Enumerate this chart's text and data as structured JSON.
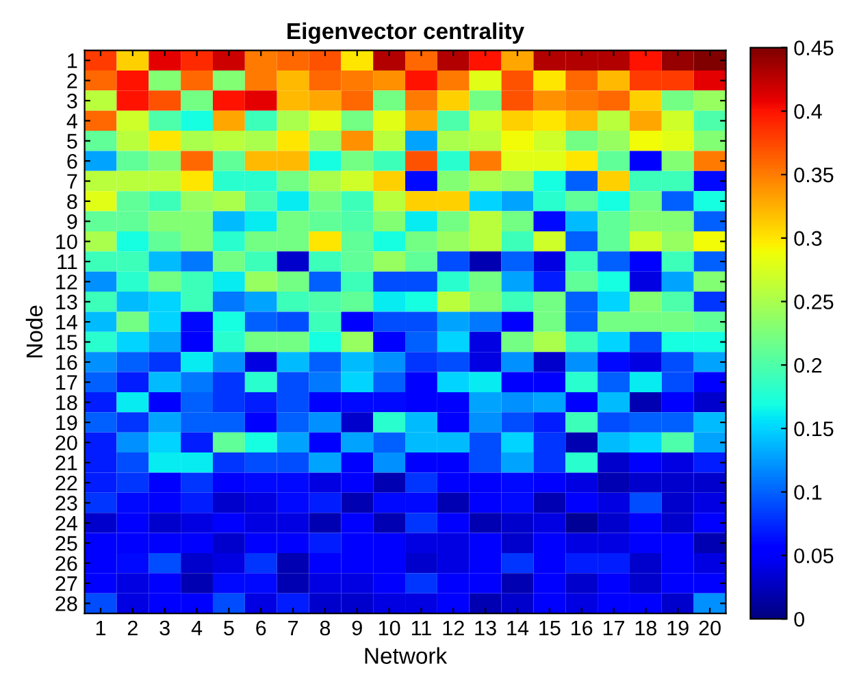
{
  "chart_data": {
    "type": "heatmap",
    "title": "Eigenvector centrality",
    "xlabel": "Network",
    "ylabel": "Node",
    "categories": [
      "1",
      "2",
      "3",
      "4",
      "5",
      "6",
      "7",
      "8",
      "9",
      "10",
      "11",
      "12",
      "13",
      "14",
      "15",
      "16",
      "17",
      "18",
      "19",
      "20"
    ],
    "y_categories": [
      "1",
      "2",
      "3",
      "4",
      "5",
      "6",
      "7",
      "8",
      "9",
      "10",
      "11",
      "12",
      "13",
      "14",
      "15",
      "16",
      "17",
      "18",
      "19",
      "20",
      "21",
      "22",
      "23",
      "24",
      "25",
      "26",
      "27",
      "28"
    ],
    "clim": [
      0,
      0.45
    ],
    "cticks": [
      0,
      0.05,
      0.1,
      0.15,
      0.2,
      0.25,
      0.3,
      0.35,
      0.4,
      0.45
    ],
    "cells": [
      [
        0.38,
        0.31,
        0.41,
        0.39,
        0.42,
        0.35,
        0.36,
        0.37,
        0.3,
        0.43,
        0.36,
        0.43,
        0.4,
        0.33,
        0.43,
        0.43,
        0.43,
        0.4,
        0.44,
        0.45
      ],
      [
        0.36,
        0.4,
        0.23,
        0.36,
        0.23,
        0.35,
        0.32,
        0.36,
        0.35,
        0.34,
        0.4,
        0.35,
        0.28,
        0.37,
        0.3,
        0.36,
        0.32,
        0.38,
        0.38,
        0.41
      ],
      [
        0.26,
        0.4,
        0.37,
        0.22,
        0.4,
        0.41,
        0.32,
        0.33,
        0.36,
        0.22,
        0.35,
        0.31,
        0.22,
        0.37,
        0.34,
        0.35,
        0.36,
        0.31,
        0.22,
        0.24
      ],
      [
        0.36,
        0.27,
        0.2,
        0.17,
        0.33,
        0.19,
        0.25,
        0.28,
        0.22,
        0.28,
        0.33,
        0.2,
        0.27,
        0.31,
        0.3,
        0.32,
        0.26,
        0.33,
        0.27,
        0.2
      ],
      [
        0.21,
        0.26,
        0.3,
        0.25,
        0.26,
        0.25,
        0.3,
        0.24,
        0.34,
        0.26,
        0.13,
        0.25,
        0.26,
        0.29,
        0.27,
        0.22,
        0.24,
        0.29,
        0.28,
        0.23
      ],
      [
        0.13,
        0.21,
        0.23,
        0.36,
        0.21,
        0.32,
        0.32,
        0.17,
        0.22,
        0.19,
        0.37,
        0.18,
        0.35,
        0.28,
        0.28,
        0.3,
        0.21,
        0.05,
        0.23,
        0.35
      ],
      [
        0.26,
        0.26,
        0.26,
        0.3,
        0.18,
        0.18,
        0.22,
        0.25,
        0.27,
        0.31,
        0.06,
        0.23,
        0.25,
        0.24,
        0.17,
        0.1,
        0.31,
        0.19,
        0.19,
        0.06
      ],
      [
        0.28,
        0.21,
        0.19,
        0.24,
        0.25,
        0.2,
        0.16,
        0.22,
        0.19,
        0.26,
        0.31,
        0.31,
        0.15,
        0.13,
        0.18,
        0.21,
        0.17,
        0.22,
        0.1,
        0.17
      ],
      [
        0.21,
        0.21,
        0.23,
        0.23,
        0.14,
        0.16,
        0.22,
        0.21,
        0.2,
        0.23,
        0.16,
        0.22,
        0.26,
        0.22,
        0.06,
        0.14,
        0.21,
        0.23,
        0.23,
        0.1
      ],
      [
        0.25,
        0.17,
        0.21,
        0.23,
        0.18,
        0.22,
        0.22,
        0.3,
        0.21,
        0.17,
        0.22,
        0.24,
        0.26,
        0.19,
        0.27,
        0.1,
        0.21,
        0.27,
        0.24,
        0.29
      ],
      [
        0.19,
        0.19,
        0.14,
        0.11,
        0.22,
        0.19,
        0.03,
        0.19,
        0.21,
        0.24,
        0.21,
        0.09,
        0.02,
        0.1,
        0.04,
        0.19,
        0.1,
        0.05,
        0.19,
        0.1
      ],
      [
        0.12,
        0.18,
        0.22,
        0.19,
        0.16,
        0.24,
        0.22,
        0.1,
        0.19,
        0.09,
        0.09,
        0.18,
        0.22,
        0.13,
        0.07,
        0.21,
        0.17,
        0.04,
        0.13,
        0.23
      ],
      [
        0.19,
        0.14,
        0.15,
        0.19,
        0.11,
        0.13,
        0.19,
        0.2,
        0.21,
        0.16,
        0.17,
        0.26,
        0.23,
        0.19,
        0.22,
        0.1,
        0.15,
        0.23,
        0.2,
        0.08
      ],
      [
        0.14,
        0.22,
        0.15,
        0.06,
        0.17,
        0.1,
        0.09,
        0.19,
        0.05,
        0.09,
        0.09,
        0.13,
        0.11,
        0.05,
        0.22,
        0.1,
        0.22,
        0.22,
        0.22,
        0.21
      ],
      [
        0.18,
        0.15,
        0.13,
        0.05,
        0.18,
        0.22,
        0.22,
        0.17,
        0.24,
        0.05,
        0.1,
        0.15,
        0.04,
        0.22,
        0.25,
        0.19,
        0.15,
        0.09,
        0.17,
        0.17
      ],
      [
        0.12,
        0.1,
        0.08,
        0.16,
        0.12,
        0.04,
        0.14,
        0.1,
        0.14,
        0.12,
        0.08,
        0.09,
        0.04,
        0.12,
        0.03,
        0.12,
        0.06,
        0.04,
        0.09,
        0.13
      ],
      [
        0.1,
        0.07,
        0.14,
        0.11,
        0.08,
        0.18,
        0.09,
        0.11,
        0.15,
        0.1,
        0.05,
        0.15,
        0.16,
        0.05,
        0.05,
        0.18,
        0.1,
        0.16,
        0.09,
        0.05
      ],
      [
        0.07,
        0.16,
        0.05,
        0.1,
        0.08,
        0.07,
        0.09,
        0.05,
        0.06,
        0.06,
        0.05,
        0.05,
        0.13,
        0.12,
        0.13,
        0.05,
        0.14,
        0.02,
        0.05,
        0.03
      ],
      [
        0.1,
        0.08,
        0.13,
        0.1,
        0.1,
        0.05,
        0.1,
        0.12,
        0.03,
        0.18,
        0.14,
        0.05,
        0.12,
        0.09,
        0.07,
        0.19,
        0.09,
        0.1,
        0.1,
        0.14
      ],
      [
        0.07,
        0.12,
        0.15,
        0.07,
        0.21,
        0.17,
        0.13,
        0.05,
        0.13,
        0.1,
        0.14,
        0.14,
        0.09,
        0.15,
        0.08,
        0.02,
        0.14,
        0.15,
        0.2,
        0.13
      ],
      [
        0.07,
        0.09,
        0.16,
        0.16,
        0.08,
        0.09,
        0.09,
        0.13,
        0.05,
        0.12,
        0.05,
        0.05,
        0.09,
        0.13,
        0.08,
        0.18,
        0.03,
        0.05,
        0.04,
        0.07
      ],
      [
        0.07,
        0.08,
        0.05,
        0.08,
        0.05,
        0.06,
        0.06,
        0.04,
        0.05,
        0.02,
        0.08,
        0.05,
        0.05,
        0.06,
        0.05,
        0.04,
        0.02,
        0.03,
        0.03,
        0.03
      ],
      [
        0.08,
        0.06,
        0.05,
        0.07,
        0.03,
        0.04,
        0.06,
        0.07,
        0.02,
        0.06,
        0.06,
        0.02,
        0.05,
        0.06,
        0.02,
        0.05,
        0.04,
        0.09,
        0.03,
        0.04
      ],
      [
        0.03,
        0.05,
        0.03,
        0.04,
        0.05,
        0.04,
        0.04,
        0.02,
        0.05,
        0.02,
        0.08,
        0.05,
        0.02,
        0.03,
        0.04,
        0.01,
        0.03,
        0.05,
        0.03,
        0.05
      ],
      [
        0.05,
        0.05,
        0.05,
        0.05,
        0.03,
        0.05,
        0.05,
        0.07,
        0.05,
        0.05,
        0.04,
        0.04,
        0.05,
        0.03,
        0.05,
        0.04,
        0.04,
        0.05,
        0.05,
        0.02
      ],
      [
        0.05,
        0.06,
        0.09,
        0.03,
        0.04,
        0.08,
        0.02,
        0.05,
        0.05,
        0.05,
        0.03,
        0.04,
        0.05,
        0.08,
        0.05,
        0.07,
        0.07,
        0.03,
        0.05,
        0.04
      ],
      [
        0.05,
        0.04,
        0.05,
        0.02,
        0.06,
        0.06,
        0.02,
        0.04,
        0.04,
        0.05,
        0.08,
        0.05,
        0.05,
        0.02,
        0.05,
        0.03,
        0.05,
        0.03,
        0.05,
        0.05
      ],
      [
        0.09,
        0.04,
        0.05,
        0.05,
        0.09,
        0.04,
        0.07,
        0.03,
        0.03,
        0.04,
        0.04,
        0.05,
        0.02,
        0.03,
        0.05,
        0.04,
        0.05,
        0.05,
        0.03,
        0.12
      ]
    ]
  }
}
